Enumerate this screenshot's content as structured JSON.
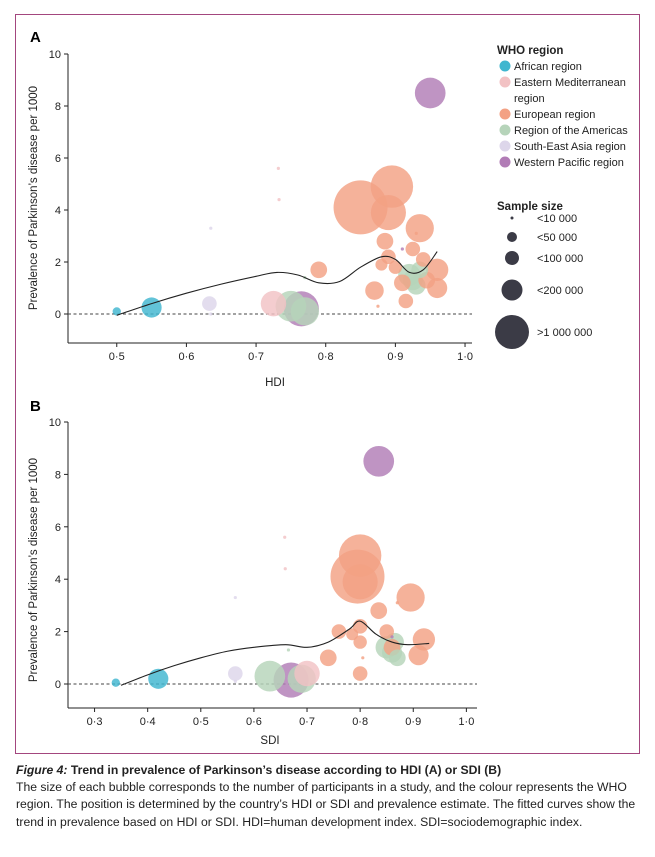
{
  "caption": {
    "label": "Figure 4:",
    "title": "Trend in prevalence of Parkinson’s disease according to HDI (A) or SDI (B)",
    "body": "The size of each bubble corresponds to the number of participants in a study, and the colour represents the WHO region. The position is determined by the country’s HDI or SDI and prevalence estimate. The fitted curves show the trend in prevalence based on HDI or SDI. HDI=human development index. SDI=sociodemographic index."
  },
  "legend": {
    "region_title": "WHO region",
    "regions": [
      {
        "key": "african",
        "label": "African region",
        "color": "#3fb6cf"
      },
      {
        "key": "emr",
        "label": "Eastern Mediterranean region",
        "color": "#f2c2c4"
      },
      {
        "key": "eur",
        "label": "European region",
        "color": "#f3a184"
      },
      {
        "key": "amr",
        "label": "Region of the Americas",
        "color": "#b6d4ba"
      },
      {
        "key": "sear",
        "label": "South-East Asia region",
        "color": "#ddd6ea"
      },
      {
        "key": "wpr",
        "label": "Western Pacific region",
        "color": "#b17cb6"
      }
    ],
    "size_title": "Sample size",
    "sizes": [
      {
        "label": "<10 000",
        "n": 10000
      },
      {
        "label": "<50 000",
        "n": 50000
      },
      {
        "label": "<100 000",
        "n": 100000
      },
      {
        "label": "<200 000",
        "n": 200000
      },
      {
        "label": ">1 000 000",
        "n": 1000000
      }
    ]
  },
  "chart_data": [
    {
      "panel": "A",
      "type": "scatter",
      "xlabel": "HDI",
      "ylabel": "Prevalence of Parkinson’s disease per 1000",
      "xlim": [
        0.43,
        1.01
      ],
      "ylim": [
        -1.2,
        10
      ],
      "xticks": [
        0.5,
        0.6,
        0.7,
        0.8,
        0.9,
        1.0
      ],
      "xtick_labels": [
        "0·5",
        "0·6",
        "0·7",
        "0·8",
        "0·9",
        "1·0"
      ],
      "yticks": [
        0,
        2,
        4,
        6,
        8,
        10
      ],
      "reference_line": 0,
      "fitted_curve": [
        [
          0.5,
          -0.05
        ],
        [
          0.55,
          0.4
        ],
        [
          0.6,
          0.8
        ],
        [
          0.65,
          1.15
        ],
        [
          0.7,
          1.45
        ],
        [
          0.73,
          1.6
        ],
        [
          0.76,
          1.5
        ],
        [
          0.79,
          1.2
        ],
        [
          0.82,
          1.25
        ],
        [
          0.85,
          1.8
        ],
        [
          0.88,
          2.2
        ],
        [
          0.9,
          2.1
        ],
        [
          0.92,
          1.6
        ],
        [
          0.94,
          1.7
        ],
        [
          0.96,
          2.4
        ]
      ],
      "points": [
        {
          "x": 0.5,
          "y": 0.1,
          "region": "african",
          "n": 20000
        },
        {
          "x": 0.55,
          "y": 0.25,
          "region": "african",
          "n": 120000
        },
        {
          "x": 0.633,
          "y": 0.4,
          "region": "sear",
          "n": 60000
        },
        {
          "x": 0.635,
          "y": 3.3,
          "region": "sear",
          "n": 5000
        },
        {
          "x": 0.635,
          "y": 0.0,
          "region": "sear",
          "n": 8000
        },
        {
          "x": 0.732,
          "y": 5.6,
          "region": "emr",
          "n": 4000
        },
        {
          "x": 0.733,
          "y": 4.4,
          "region": "emr",
          "n": 4000
        },
        {
          "x": 0.725,
          "y": 0.4,
          "region": "emr",
          "n": 200000
        },
        {
          "x": 0.75,
          "y": 0.3,
          "region": "amr",
          "n": 300000
        },
        {
          "x": 0.77,
          "y": 0.1,
          "region": "amr",
          "n": 250000
        },
        {
          "x": 0.765,
          "y": 0.2,
          "region": "wpr",
          "n": 400000
        },
        {
          "x": 0.77,
          "y": 1.4,
          "region": "amr",
          "n": 5000
        },
        {
          "x": 0.79,
          "y": 1.7,
          "region": "eur",
          "n": 80000
        },
        {
          "x": 0.85,
          "y": 4.1,
          "region": "eur",
          "n": 1000000
        },
        {
          "x": 0.87,
          "y": 0.9,
          "region": "eur",
          "n": 100000
        },
        {
          "x": 0.895,
          "y": 4.9,
          "region": "eur",
          "n": 600000
        },
        {
          "x": 0.89,
          "y": 3.9,
          "region": "eur",
          "n": 400000
        },
        {
          "x": 0.885,
          "y": 2.8,
          "region": "eur",
          "n": 80000
        },
        {
          "x": 0.89,
          "y": 2.2,
          "region": "eur",
          "n": 60000
        },
        {
          "x": 0.9,
          "y": 1.8,
          "region": "eur",
          "n": 50000
        },
        {
          "x": 0.88,
          "y": 1.9,
          "region": "eur",
          "n": 40000
        },
        {
          "x": 0.91,
          "y": 1.2,
          "region": "eur",
          "n": 80000
        },
        {
          "x": 0.915,
          "y": 0.5,
          "region": "eur",
          "n": 60000
        },
        {
          "x": 0.925,
          "y": 2.5,
          "region": "eur",
          "n": 60000
        },
        {
          "x": 0.93,
          "y": 3.1,
          "region": "eur",
          "n": 5000
        },
        {
          "x": 0.935,
          "y": 3.3,
          "region": "eur",
          "n": 250000
        },
        {
          "x": 0.94,
          "y": 2.1,
          "region": "eur",
          "n": 60000
        },
        {
          "x": 0.945,
          "y": 1.3,
          "region": "eur",
          "n": 80000
        },
        {
          "x": 0.96,
          "y": 1.7,
          "region": "eur",
          "n": 150000
        },
        {
          "x": 0.96,
          "y": 1.0,
          "region": "eur",
          "n": 120000
        },
        {
          "x": 0.875,
          "y": 0.3,
          "region": "eur",
          "n": 10000
        },
        {
          "x": 0.92,
          "y": 1.5,
          "region": "amr",
          "n": 150000
        },
        {
          "x": 0.925,
          "y": 1.3,
          "region": "amr",
          "n": 120000
        },
        {
          "x": 0.93,
          "y": 1.1,
          "region": "amr",
          "n": 100000
        },
        {
          "x": 0.935,
          "y": 1.7,
          "region": "amr",
          "n": 80000
        },
        {
          "x": 0.95,
          "y": 8.5,
          "region": "wpr",
          "n": 300000
        },
        {
          "x": 0.91,
          "y": 2.5,
          "region": "wpr",
          "n": 8000
        }
      ]
    },
    {
      "panel": "B",
      "type": "scatter",
      "xlabel": "SDI",
      "ylabel": "Prevalence of Parkinson’s disease per 1000",
      "xlim": [
        0.25,
        1.02
      ],
      "ylim": [
        -1.2,
        10
      ],
      "xticks": [
        0.3,
        0.4,
        0.5,
        0.6,
        0.7,
        0.8,
        0.9,
        1.0
      ],
      "xtick_labels": [
        "0·3",
        "0·4",
        "0·5",
        "0·6",
        "0·7",
        "0·8",
        "0·9",
        "1·0"
      ],
      "yticks": [
        0,
        2,
        4,
        6,
        8,
        10
      ],
      "reference_line": 0,
      "fitted_curve": [
        [
          0.35,
          -0.05
        ],
        [
          0.4,
          0.35
        ],
        [
          0.45,
          0.7
        ],
        [
          0.5,
          1.0
        ],
        [
          0.55,
          1.25
        ],
        [
          0.6,
          1.4
        ],
        [
          0.66,
          1.5
        ],
        [
          0.7,
          1.4
        ],
        [
          0.74,
          1.6
        ],
        [
          0.78,
          2.1
        ],
        [
          0.8,
          2.4
        ],
        [
          0.83,
          1.9
        ],
        [
          0.86,
          1.6
        ],
        [
          0.89,
          1.5
        ],
        [
          0.93,
          1.55
        ]
      ],
      "points": [
        {
          "x": 0.34,
          "y": 0.05,
          "region": "african",
          "n": 20000
        },
        {
          "x": 0.42,
          "y": 0.2,
          "region": "african",
          "n": 120000
        },
        {
          "x": 0.565,
          "y": 0.4,
          "region": "sear",
          "n": 60000
        },
        {
          "x": 0.565,
          "y": 3.3,
          "region": "sear",
          "n": 5000
        },
        {
          "x": 0.565,
          "y": 0.1,
          "region": "sear",
          "n": 8000
        },
        {
          "x": 0.658,
          "y": 5.6,
          "region": "emr",
          "n": 4000
        },
        {
          "x": 0.659,
          "y": 4.4,
          "region": "emr",
          "n": 4000
        },
        {
          "x": 0.7,
          "y": 0.4,
          "region": "emr",
          "n": 200000
        },
        {
          "x": 0.63,
          "y": 0.3,
          "region": "amr",
          "n": 300000
        },
        {
          "x": 0.69,
          "y": 0.2,
          "region": "amr",
          "n": 250000
        },
        {
          "x": 0.67,
          "y": 0.15,
          "region": "wpr",
          "n": 400000
        },
        {
          "x": 0.665,
          "y": 1.3,
          "region": "amr",
          "n": 5000
        },
        {
          "x": 0.74,
          "y": 1.0,
          "region": "eur",
          "n": 80000
        },
        {
          "x": 0.795,
          "y": 4.1,
          "region": "eur",
          "n": 1000000
        },
        {
          "x": 0.8,
          "y": 4.9,
          "region": "eur",
          "n": 600000
        },
        {
          "x": 0.8,
          "y": 3.9,
          "region": "eur",
          "n": 400000
        },
        {
          "x": 0.835,
          "y": 2.8,
          "region": "eur",
          "n": 80000
        },
        {
          "x": 0.8,
          "y": 2.2,
          "region": "eur",
          "n": 60000
        },
        {
          "x": 0.8,
          "y": 1.6,
          "region": "eur",
          "n": 50000
        },
        {
          "x": 0.785,
          "y": 1.9,
          "region": "eur",
          "n": 40000
        },
        {
          "x": 0.76,
          "y": 2.0,
          "region": "eur",
          "n": 60000
        },
        {
          "x": 0.8,
          "y": 0.4,
          "region": "eur",
          "n": 60000
        },
        {
          "x": 0.805,
          "y": 1.0,
          "region": "eur",
          "n": 10000
        },
        {
          "x": 0.87,
          "y": 3.1,
          "region": "eur",
          "n": 5000
        },
        {
          "x": 0.895,
          "y": 3.3,
          "region": "eur",
          "n": 250000
        },
        {
          "x": 0.85,
          "y": 2.0,
          "region": "eur",
          "n": 60000
        },
        {
          "x": 0.86,
          "y": 1.4,
          "region": "eur",
          "n": 80000
        },
        {
          "x": 0.92,
          "y": 1.7,
          "region": "eur",
          "n": 150000
        },
        {
          "x": 0.91,
          "y": 1.1,
          "region": "eur",
          "n": 120000
        },
        {
          "x": 0.85,
          "y": 1.4,
          "region": "amr",
          "n": 150000
        },
        {
          "x": 0.86,
          "y": 1.2,
          "region": "amr",
          "n": 120000
        },
        {
          "x": 0.865,
          "y": 1.6,
          "region": "amr",
          "n": 100000
        },
        {
          "x": 0.87,
          "y": 1.0,
          "region": "amr",
          "n": 80000
        },
        {
          "x": 0.835,
          "y": 8.5,
          "region": "wpr",
          "n": 300000
        },
        {
          "x": 0.86,
          "y": 1.8,
          "region": "wpr",
          "n": 8000
        }
      ]
    }
  ]
}
